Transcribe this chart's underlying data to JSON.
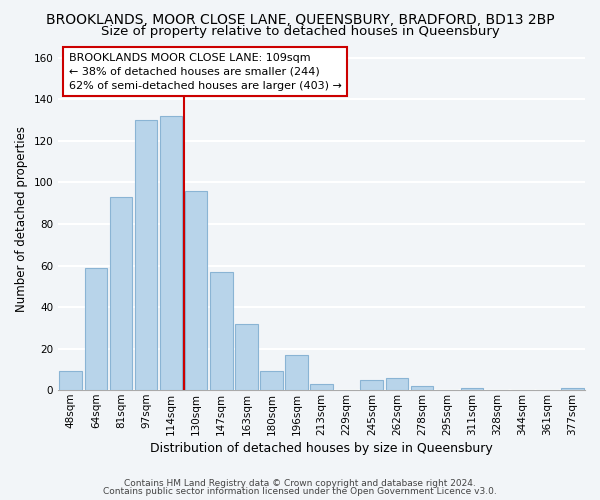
{
  "title": "BROOKLANDS, MOOR CLOSE LANE, QUEENSBURY, BRADFORD, BD13 2BP",
  "subtitle": "Size of property relative to detached houses in Queensbury",
  "xlabel": "Distribution of detached houses by size in Queensbury",
  "ylabel": "Number of detached properties",
  "bar_labels": [
    "48sqm",
    "64sqm",
    "81sqm",
    "97sqm",
    "114sqm",
    "130sqm",
    "147sqm",
    "163sqm",
    "180sqm",
    "196sqm",
    "213sqm",
    "229sqm",
    "245sqm",
    "262sqm",
    "278sqm",
    "295sqm",
    "311sqm",
    "328sqm",
    "344sqm",
    "361sqm",
    "377sqm"
  ],
  "bar_heights": [
    9,
    59,
    93,
    130,
    132,
    96,
    57,
    32,
    9,
    17,
    3,
    0,
    5,
    6,
    2,
    0,
    1,
    0,
    0,
    0,
    1
  ],
  "bar_color": "#b8d4ea",
  "bar_edge_color": "#8ab4d4",
  "vline_x": 4.5,
  "vline_color": "#cc0000",
  "annotation_text": "BROOKLANDS MOOR CLOSE LANE: 109sqm\n← 38% of detached houses are smaller (244)\n62% of semi-detached houses are larger (403) →",
  "annotation_box_facecolor": "#ffffff",
  "annotation_box_edgecolor": "#cc0000",
  "ylim": [
    0,
    165
  ],
  "yticks": [
    0,
    20,
    40,
    60,
    80,
    100,
    120,
    140,
    160
  ],
  "footer_line1": "Contains HM Land Registry data © Crown copyright and database right 2024.",
  "footer_line2": "Contains public sector information licensed under the Open Government Licence v3.0.",
  "background_color": "#f2f5f8",
  "plot_background_color": "#f2f5f8",
  "grid_color": "#ffffff",
  "title_fontsize": 10,
  "subtitle_fontsize": 9.5,
  "xlabel_fontsize": 9,
  "ylabel_fontsize": 8.5,
  "tick_fontsize": 7.5,
  "annotation_fontsize": 8,
  "footer_fontsize": 6.5
}
